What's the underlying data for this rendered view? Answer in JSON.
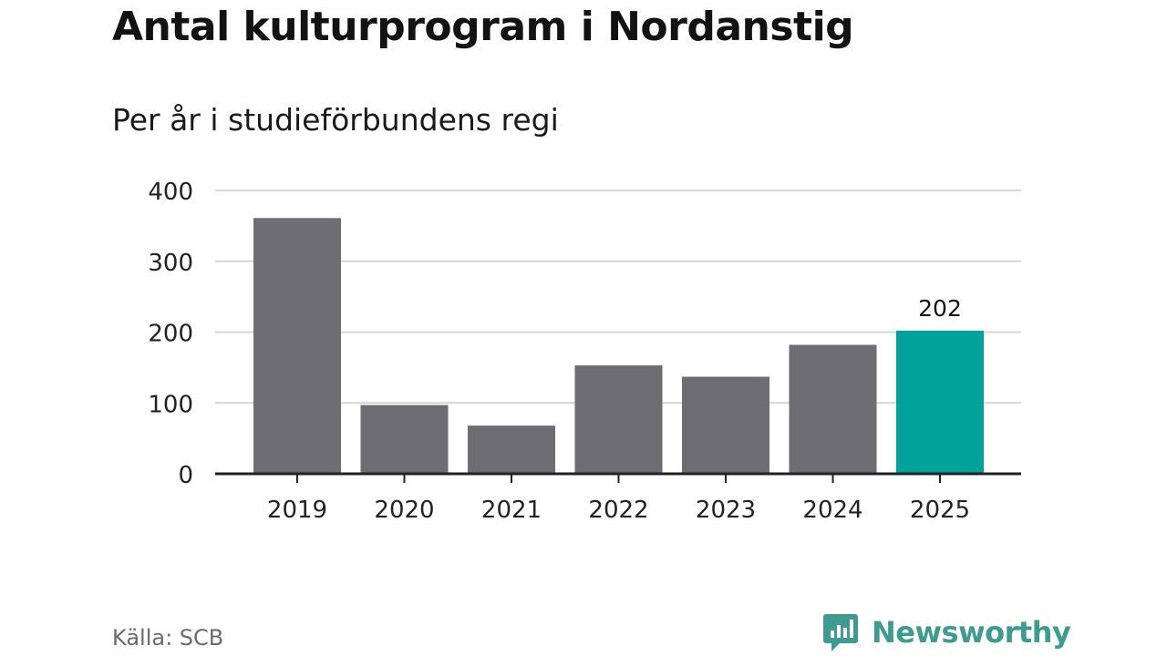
{
  "header": {
    "title": "Antal kulturprogram i Nordanstig",
    "subtitle": "Per år i studieförbundens regi"
  },
  "footer": {
    "source": "Källa: SCB",
    "brand": "Newsworthy",
    "brand_icon": "bar-chart-speech-bubble-icon"
  },
  "colors": {
    "bar": "#6e6d73",
    "highlight": "#00a39a",
    "grid": "#d6d6d6",
    "axis": "#222222",
    "brand": "#3f9a90"
  },
  "chart_data": {
    "type": "bar",
    "categories": [
      "2019",
      "2020",
      "2021",
      "2022",
      "2023",
      "2024",
      "2025"
    ],
    "values": [
      361,
      97,
      68,
      153,
      137,
      182,
      202
    ],
    "highlight_index": 6,
    "data_labels": [
      {
        "index": 6,
        "text": "202"
      }
    ],
    "yticks": [
      "0",
      "100",
      "200",
      "300",
      "400"
    ],
    "ylim": [
      0,
      400
    ],
    "grid": true,
    "legend": "none"
  }
}
